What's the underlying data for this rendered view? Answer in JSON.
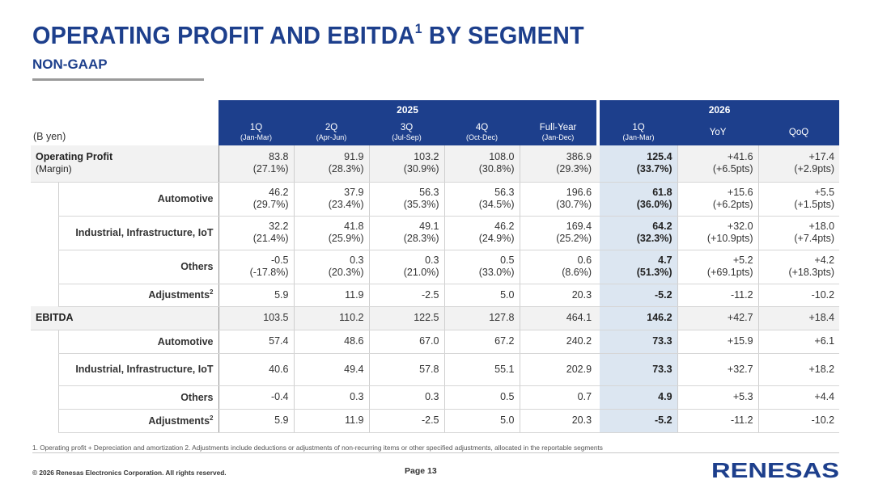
{
  "header": {
    "title": "OPERATING PROFIT AND EBITDA",
    "title_sup": "1",
    "title_suffix": " BY SEGMENT",
    "subtitle": "NON-GAAP"
  },
  "table": {
    "unit_label": "(B yen)",
    "year_2025": "2025",
    "year_2026": "2026",
    "columns": [
      {
        "label": "1Q",
        "sub": "(Jan-Mar)"
      },
      {
        "label": "2Q",
        "sub": "(Apr-Jun)"
      },
      {
        "label": "3Q",
        "sub": "(Jul-Sep)"
      },
      {
        "label": "4Q",
        "sub": "(Oct-Dec)"
      },
      {
        "label": "Full-Year",
        "sub": "(Jan-Dec)"
      },
      {
        "label": "1Q",
        "sub": "(Jan-Mar)"
      },
      {
        "label": "YoY",
        "sub": ""
      },
      {
        "label": "QoQ",
        "sub": ""
      }
    ],
    "rows": [
      {
        "label": "Operating Profit",
        "label2": "(Margin)",
        "values": [
          "83.8",
          "91.9",
          "103.2",
          "108.0",
          "386.9",
          "125.4",
          "+41.6",
          "+17.4"
        ],
        "values2": [
          "(27.1%)",
          "(28.3%)",
          "(30.9%)",
          "(30.8%)",
          "(29.3%)",
          "(33.7%)",
          "(+6.5pts)",
          "(+2.9pts)"
        ]
      },
      {
        "label": "Automotive",
        "values": [
          "46.2",
          "37.9",
          "56.3",
          "56.3",
          "196.6",
          "61.8",
          "+15.6",
          "+5.5"
        ],
        "values2": [
          "(29.7%)",
          "(23.4%)",
          "(35.3%)",
          "(34.5%)",
          "(30.7%)",
          "(36.0%)",
          "(+6.2pts)",
          "(+1.5pts)"
        ]
      },
      {
        "label": "Industrial, Infrastructure, IoT",
        "values": [
          "32.2",
          "41.8",
          "49.1",
          "46.2",
          "169.4",
          "64.2",
          "+32.0",
          "+18.0"
        ],
        "values2": [
          "(21.4%)",
          "(25.9%)",
          "(28.3%)",
          "(24.9%)",
          "(25.2%)",
          "(32.3%)",
          "(+10.9pts)",
          "(+7.4pts)"
        ]
      },
      {
        "label": "Others",
        "values": [
          "-0.5",
          "0.3",
          "0.3",
          "0.5",
          "0.6",
          "4.7",
          "+5.2",
          "+4.2"
        ],
        "values2": [
          "(-17.8%)",
          "(20.3%)",
          "(21.0%)",
          "(33.0%)",
          "(8.6%)",
          "(51.3%)",
          "(+69.1pts)",
          "(+18.3pts)"
        ]
      },
      {
        "label": "Adjustments",
        "sup": "2",
        "values": [
          "5.9",
          "11.9",
          "-2.5",
          "5.0",
          "20.3",
          "-5.2",
          "-11.2",
          "-10.2"
        ]
      },
      {
        "label": "EBITDA",
        "values": [
          "103.5",
          "110.2",
          "122.5",
          "127.8",
          "464.1",
          "146.2",
          "+42.7",
          "+18.4"
        ]
      },
      {
        "label": "Automotive",
        "values": [
          "57.4",
          "48.6",
          "67.0",
          "67.2",
          "240.2",
          "73.3",
          "+15.9",
          "+6.1"
        ]
      },
      {
        "label": "Industrial, Infrastructure, IoT",
        "values": [
          "40.6",
          "49.4",
          "57.8",
          "55.1",
          "202.9",
          "73.3",
          "+32.7",
          "+18.2"
        ]
      },
      {
        "label": "Others",
        "values": [
          "-0.4",
          "0.3",
          "0.3",
          "0.5",
          "0.7",
          "4.9",
          "+5.3",
          "+4.4"
        ]
      },
      {
        "label": "Adjustments",
        "sup": "2",
        "values": [
          "5.9",
          "11.9",
          "-2.5",
          "5.0",
          "20.3",
          "-5.2",
          "-11.2",
          "-10.2"
        ]
      }
    ]
  },
  "footer": {
    "footnote": "1. Operating profit + Depreciation and amortization    2. Adjustments include deductions or adjustments of non-recurring items or other specified adjustments, allocated in the reportable segments",
    "copyright": "© 2026 Renesas Electronics Corporation. All rights reserved.",
    "page": "Page 13",
    "logo_text": "RENESAS",
    "brand_color": "#1d3f8c",
    "highlight_color": "#dce6f1"
  }
}
